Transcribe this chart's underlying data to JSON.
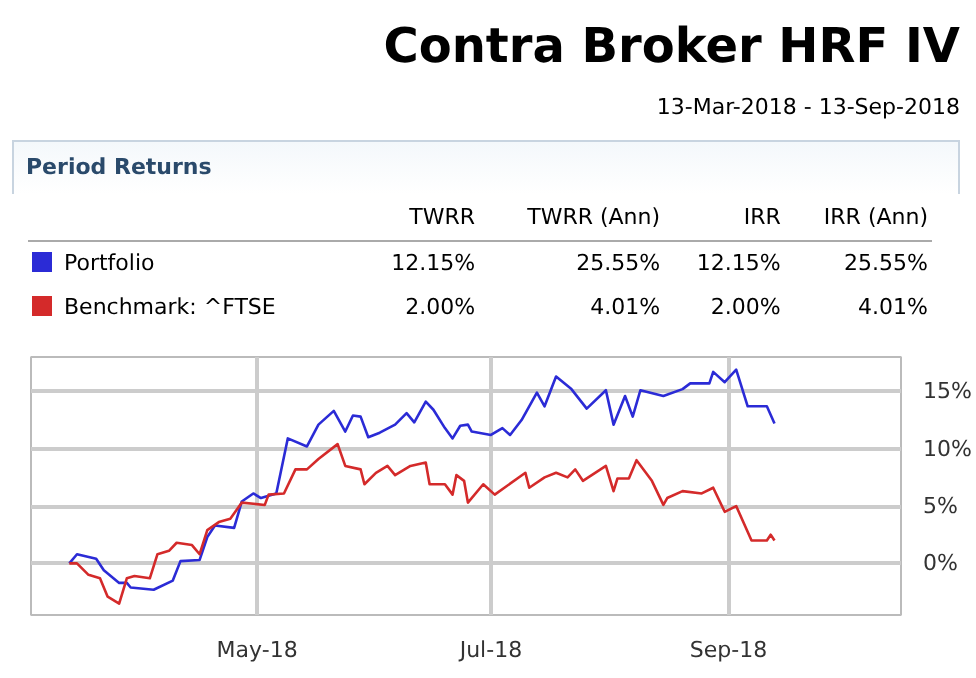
{
  "chart_data": {
    "type": "line",
    "title": "Contra Broker HRF IV",
    "subtitle": "13-Mar-2018 - 13-Sep-2018",
    "annotations": [
      "Period Returns",
      "TWRR",
      "TWRR (Ann)",
      "IRR",
      "IRR (Ann)",
      "12.15%",
      "25.55%",
      "12.15%",
      "25.55%",
      "2.00%",
      "4.01%",
      "2.00%",
      "4.01%"
    ],
    "legend": "top",
    "grid": true,
    "line_style": "solid",
    "xlim": [
      "2018-03-03",
      "2018-10-16"
    ],
    "xticks": [
      {
        "value": "2018-05-01",
        "label": "May-18"
      },
      {
        "value": "2018-07-01",
        "label": "Jul-18"
      },
      {
        "value": "2018-09-01",
        "label": "Sep-18"
      }
    ],
    "ylim": [
      -4.5,
      18
    ],
    "yticks": [
      {
        "value": 0,
        "label": "0%"
      },
      {
        "value": 5,
        "label": "5%"
      },
      {
        "value": 10,
        "label": "10%"
      },
      {
        "value": 15,
        "label": "15%"
      }
    ],
    "series": [
      {
        "name": "Portfolio",
        "color": "#2b2bd6",
        "x": [
          "2018-03-13",
          "2018-03-15",
          "2018-03-20",
          "2018-03-22",
          "2018-03-26",
          "2018-03-28",
          "2018-03-29",
          "2018-04-04",
          "2018-04-09",
          "2018-04-11",
          "2018-04-16",
          "2018-04-18",
          "2018-04-20",
          "2018-04-25",
          "2018-04-27",
          "2018-04-30",
          "2018-05-02",
          "2018-05-06",
          "2018-05-09",
          "2018-05-14",
          "2018-05-17",
          "2018-05-21",
          "2018-05-24",
          "2018-05-26",
          "2018-05-28",
          "2018-05-30",
          "2018-06-02",
          "2018-06-06",
          "2018-06-09",
          "2018-06-11",
          "2018-06-14",
          "2018-06-16",
          "2018-06-19",
          "2018-06-21",
          "2018-06-23",
          "2018-06-25",
          "2018-06-26",
          "2018-07-01",
          "2018-07-04",
          "2018-07-06",
          "2018-07-09",
          "2018-07-13",
          "2018-07-15",
          "2018-07-18",
          "2018-07-22",
          "2018-07-26",
          "2018-07-31",
          "2018-08-02",
          "2018-08-05",
          "2018-08-07",
          "2018-08-09",
          "2018-08-15",
          "2018-08-20",
          "2018-08-22",
          "2018-08-27",
          "2018-08-28",
          "2018-08-31",
          "2018-09-03",
          "2018-09-06",
          "2018-09-11",
          "2018-09-13"
        ],
        "values": [
          0,
          0.8,
          0.4,
          -0.6,
          -1.7,
          -1.7,
          -2.1,
          -2.3,
          -1.5,
          0.2,
          0.3,
          2.3,
          3.3,
          3.1,
          5.4,
          6.1,
          5.7,
          6.1,
          10.9,
          10.2,
          12.1,
          13.3,
          11.5,
          12.9,
          12.8,
          11.0,
          11.4,
          12.1,
          13.1,
          12.3,
          14.1,
          13.4,
          11.8,
          10.9,
          12.0,
          12.1,
          11.5,
          11.2,
          11.8,
          11.2,
          12.5,
          14.9,
          13.7,
          16.3,
          15.2,
          13.5,
          15.1,
          12.1,
          14.6,
          12.8,
          15.1,
          14.6,
          15.2,
          15.7,
          15.7,
          16.7,
          15.8,
          16.9,
          13.7,
          13.7,
          12.2
        ]
      },
      {
        "name": "Benchmark: ^FTSE",
        "color": "#d42a2a",
        "x": [
          "2018-03-13",
          "2018-03-15",
          "2018-03-18",
          "2018-03-21",
          "2018-03-23",
          "2018-03-26",
          "2018-03-28",
          "2018-03-30",
          "2018-04-03",
          "2018-04-05",
          "2018-04-08",
          "2018-04-10",
          "2018-04-14",
          "2018-04-16",
          "2018-04-18",
          "2018-04-21",
          "2018-04-24",
          "2018-04-27",
          "2018-05-03",
          "2018-05-04",
          "2018-05-08",
          "2018-05-11",
          "2018-05-14",
          "2018-05-17",
          "2018-05-22",
          "2018-05-24",
          "2018-05-28",
          "2018-05-29",
          "2018-06-01",
          "2018-06-04",
          "2018-06-06",
          "2018-06-10",
          "2018-06-14",
          "2018-06-15",
          "2018-06-19",
          "2018-06-21",
          "2018-06-22",
          "2018-06-24",
          "2018-06-25",
          "2018-06-29",
          "2018-07-02",
          "2018-07-10",
          "2018-07-11",
          "2018-07-15",
          "2018-07-18",
          "2018-07-21",
          "2018-07-23",
          "2018-07-25",
          "2018-07-31",
          "2018-08-02",
          "2018-08-03",
          "2018-08-06",
          "2018-08-08",
          "2018-08-12",
          "2018-08-15",
          "2018-08-16",
          "2018-08-20",
          "2018-08-25",
          "2018-08-28",
          "2018-08-31",
          "2018-09-03",
          "2018-09-07",
          "2018-09-11",
          "2018-09-12",
          "2018-09-13"
        ],
        "values": [
          0,
          0,
          -1.0,
          -1.3,
          -2.9,
          -3.5,
          -1.3,
          -1.1,
          -1.3,
          0.8,
          1.1,
          1.8,
          1.6,
          0.8,
          2.9,
          3.6,
          3.9,
          5.3,
          5.1,
          6.0,
          6.1,
          8.2,
          8.2,
          9.1,
          10.4,
          8.5,
          8.2,
          6.9,
          7.9,
          8.5,
          7.7,
          8.5,
          8.8,
          6.9,
          6.9,
          6.0,
          7.7,
          7.2,
          5.3,
          6.9,
          6.0,
          7.9,
          6.6,
          7.5,
          7.9,
          7.5,
          8.2,
          7.2,
          8.5,
          6.3,
          7.4,
          7.4,
          9.0,
          7.2,
          5.1,
          5.7,
          6.3,
          6.1,
          6.6,
          4.5,
          5.0,
          2.0,
          2.0,
          2.5,
          2.0
        ]
      }
    ]
  }
}
